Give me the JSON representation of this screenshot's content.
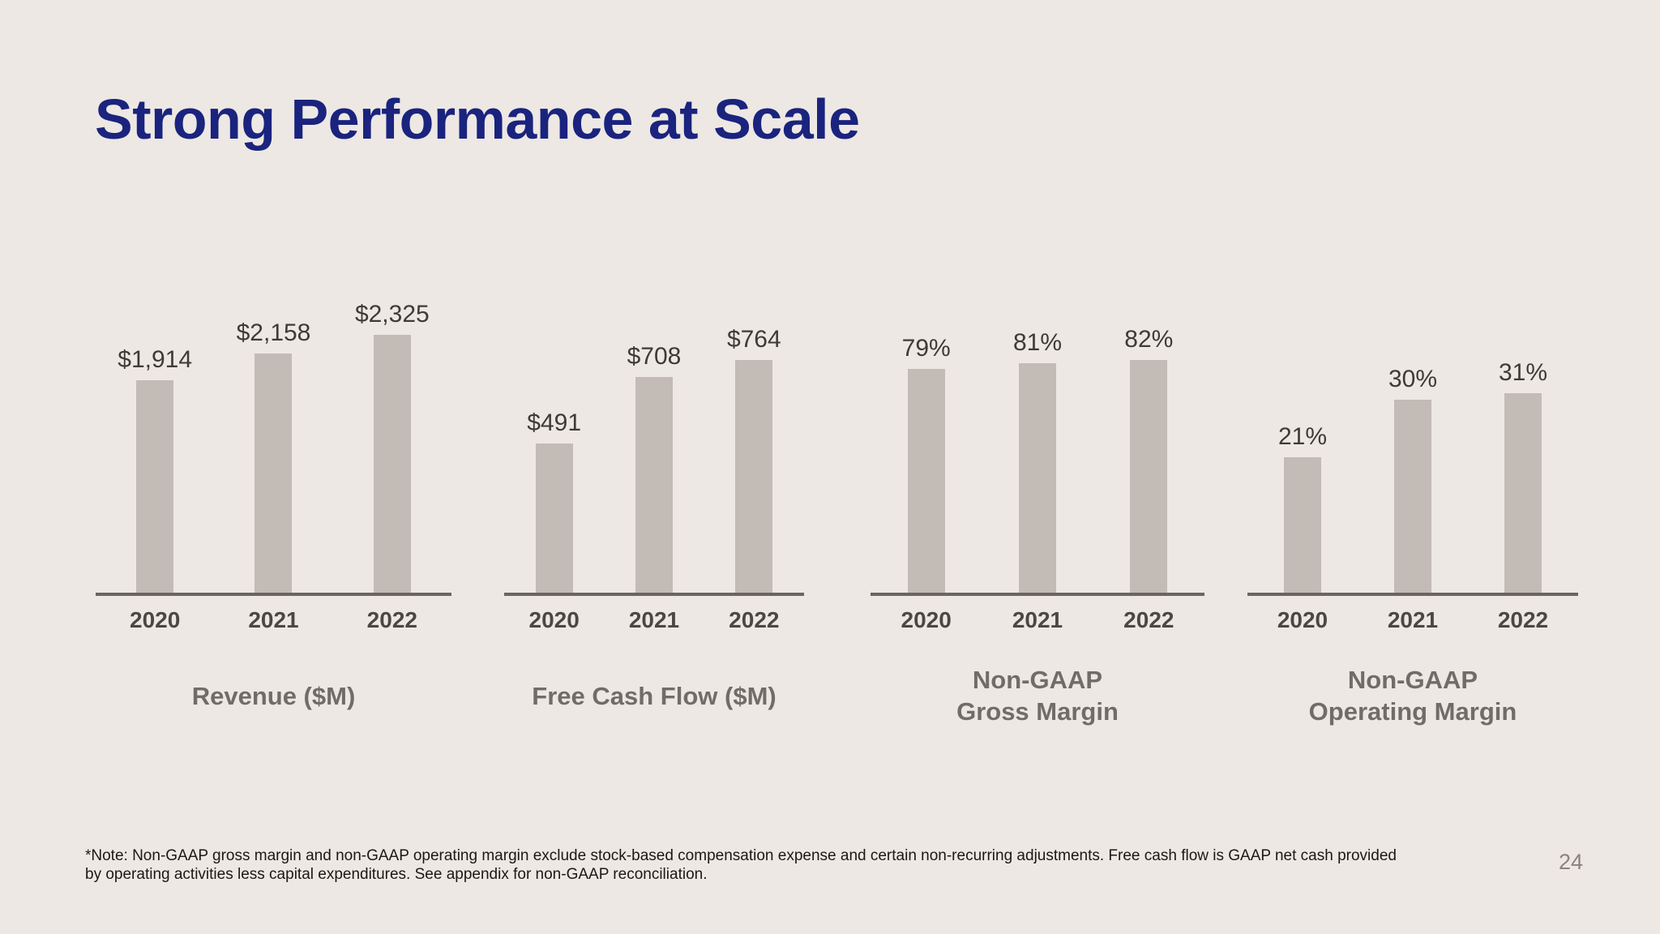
{
  "slide": {
    "title": "Strong Performance at Scale",
    "page_number": "24",
    "footnote_lines": [
      "*Note: Non-GAAP gross margin and non-GAAP operating margin exclude stock-based compensation expense and certain non-recurring adjustments. Free cash flow is GAAP net cash provided",
      "by operating activities less capital expenditures. See appendix for non-GAAP reconciliation."
    ]
  },
  "colors": {
    "background": "#EDE8E3",
    "bar": "#C3BBB6",
    "title_text": "#1A237E",
    "axis": "#6B655F",
    "category_label": "#4B4744",
    "value_label": "#3E3A37",
    "chart_title": "#716C67",
    "footnote": "#1B1815",
    "page_number": "#8B837C"
  },
  "chart_data": [
    {
      "type": "bar",
      "id": "revenue",
      "title_lines": [
        "Revenue ($M)"
      ],
      "categories": [
        "2020",
        "2021",
        "2022"
      ],
      "values": [
        1914,
        2158,
        2325
      ],
      "value_labels": [
        "$1,914",
        "$2,158",
        "$2,325"
      ],
      "ylim": [
        0,
        2340
      ],
      "grid": false,
      "legend": false
    },
    {
      "type": "bar",
      "id": "free-cash-flow",
      "title_lines": [
        "Free Cash Flow ($M)"
      ],
      "categories": [
        "2020",
        "2021",
        "2022"
      ],
      "values": [
        491,
        708,
        764
      ],
      "value_labels": [
        "$491",
        "$708",
        "$764"
      ],
      "ylim": [
        0,
        852
      ],
      "grid": false,
      "legend": false
    },
    {
      "type": "bar",
      "id": "gross-margin",
      "title_lines": [
        "Non-GAAP",
        "Gross Margin"
      ],
      "categories": [
        "2020",
        "2021",
        "2022"
      ],
      "values": [
        79,
        81,
        82
      ],
      "value_labels": [
        "79%",
        "81%",
        "82%"
      ],
      "ylim": [
        0,
        91.5
      ],
      "grid": false,
      "legend": false
    },
    {
      "type": "bar",
      "id": "operating-margin",
      "title_lines": [
        "Non-GAAP",
        "Operating Margin"
      ],
      "categories": [
        "2020",
        "2021",
        "2022"
      ],
      "values": [
        21,
        30,
        31
      ],
      "value_labels": [
        "21%",
        "30%",
        "31%"
      ],
      "ylim": [
        0,
        40.3
      ],
      "grid": false,
      "legend": false
    }
  ]
}
